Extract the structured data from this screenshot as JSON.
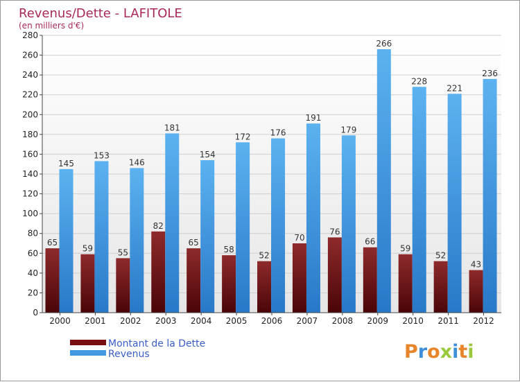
{
  "chart_data": {
    "type": "bar",
    "title": "Revenus/Dette - LAFITOLE",
    "subtitle": "(en milliers d'€)",
    "categories": [
      "2000",
      "2001",
      "2002",
      "2003",
      "2004",
      "2005",
      "2006",
      "2007",
      "2008",
      "2009",
      "2010",
      "2011",
      "2012"
    ],
    "series": [
      {
        "name": "Montant de la Dette",
        "color": "#7a0f12",
        "values": [
          65,
          59,
          55,
          82,
          65,
          58,
          52,
          70,
          76,
          66,
          59,
          52,
          43
        ]
      },
      {
        "name": "Revenus",
        "color": "#3f9ae2",
        "values": [
          145,
          153,
          146,
          181,
          154,
          172,
          176,
          191,
          179,
          266,
          228,
          221,
          236
        ]
      }
    ],
    "ylim": [
      0,
      280
    ],
    "yticks": [
      "0",
      "20",
      "40",
      "60",
      "80",
      "100",
      "120",
      "140",
      "160",
      "180",
      "200",
      "220",
      "240",
      "260",
      "280"
    ],
    "grid": true,
    "legend_position": "bottom-left"
  },
  "branding": {
    "logo_letters": [
      "P",
      "r",
      "o",
      "x",
      "i",
      "t",
      "i"
    ],
    "logo_colors": [
      "#e8852a",
      "#3c8fd8",
      "#e8852a",
      "#9ac83c",
      "#3c8fd8",
      "#e8852a",
      "#9ac83c"
    ]
  }
}
